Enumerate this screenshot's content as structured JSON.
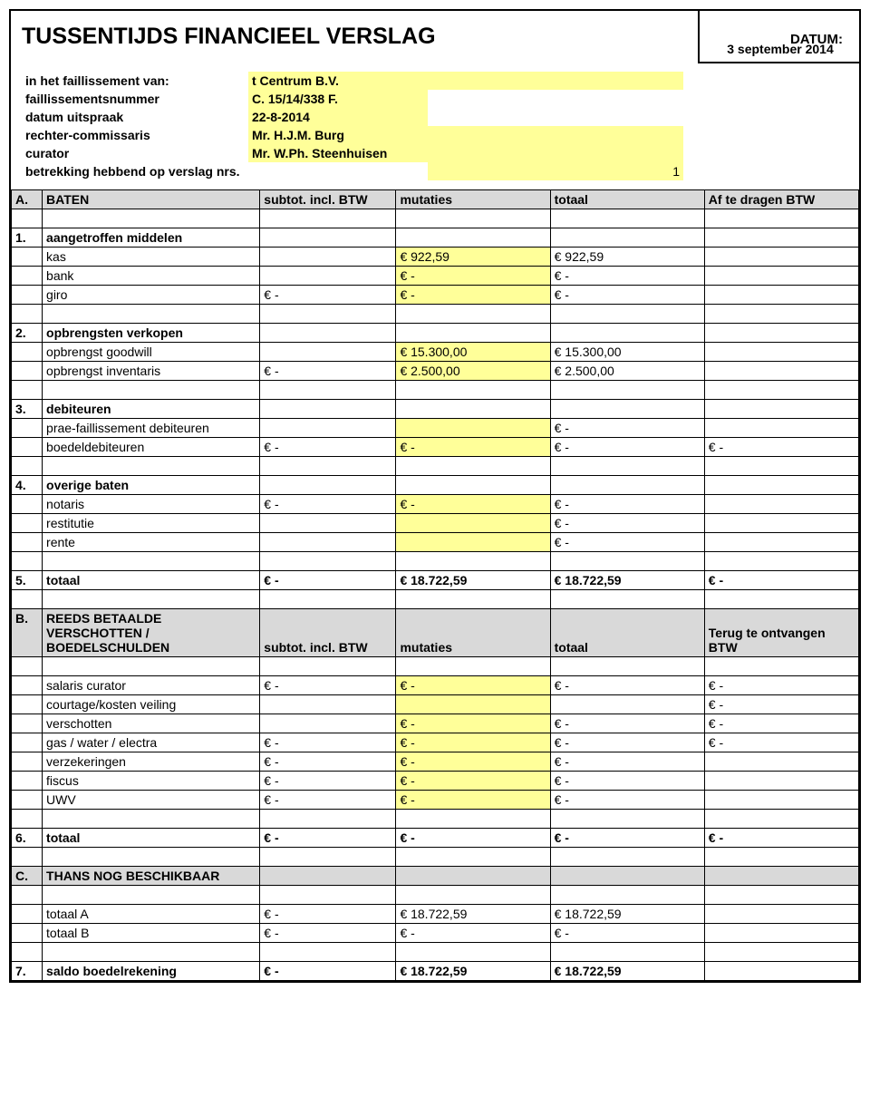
{
  "title": "TUSSENTIJDS FINANCIEEL VERSLAG",
  "datum_label": "DATUM:",
  "datum_value": "3 september 2014",
  "meta": {
    "r1_label": "in het faillissement van:",
    "r1_value": "t Centrum B.V.",
    "r2_label": "faillissementsnummer",
    "r2_value": "C. 15/14/338 F.",
    "r3_label": "datum uitspraak",
    "r3_value": "22-8-2014",
    "r4_label": "rechter-commissaris",
    "r4_value": "Mr. H.J.M. Burg",
    "r5_label": "curator",
    "r5_value": "Mr. W.Ph. Steenhuisen",
    "r6_label": "betrekking hebbend op verslag nrs.",
    "r6_value": "1"
  },
  "secA": {
    "idx": "A.",
    "title": "BATEN",
    "h1": "subtot. incl. BTW",
    "h2": "mutaties",
    "h3": "totaal",
    "h4": "Af te dragen BTW"
  },
  "s1": {
    "idx": "1.",
    "title": "aangetroffen middelen",
    "kas": "kas",
    "kas_m": "€             922,59",
    "kas_t": "€             922,59",
    "bank": "bank",
    "bank_m": "€                     -",
    "bank_t": "€                     -",
    "giro": "giro",
    "giro_s": "€                     -",
    "giro_m": "€                     -",
    "giro_t": "€                     -"
  },
  "s2": {
    "idx": "2.",
    "title": "opbrengsten verkopen",
    "gw": "opbrengst goodwill",
    "gw_m": "€        15.300,00",
    "gw_t": "€        15.300,00",
    "inv": "opbrengst inventaris",
    "inv_s": "€                     -",
    "inv_m": "€          2.500,00",
    "inv_t": "€          2.500,00"
  },
  "s3": {
    "idx": "3.",
    "title": "debiteuren",
    "pf": "prae-faillissement debiteuren",
    "pf_t": "€                     -",
    "bd": "boedeldebiteuren",
    "bd_s": "€                     -",
    "bd_m": "€                     -",
    "bd_t": "€                     -",
    "bd_b": "€                     -"
  },
  "s4": {
    "idx": "4.",
    "title": "overige baten",
    "not": "notaris",
    "not_s": "€                     -",
    "not_m": "€                     -",
    "not_t": "€                     -",
    "res": "restitutie",
    "res_t": "€                     -",
    "ren": "rente",
    "ren_t": "€                     -"
  },
  "s5": {
    "idx": "5.",
    "title": "totaal",
    "s": "€                     -",
    "m": "€        18.722,59",
    "t": "€        18.722,59",
    "b": "€                     -"
  },
  "secB": {
    "idx": "B.",
    "title": "REEDS BETAALDE VERSCHOTTEN / BOEDELSCHULDEN",
    "h1": "subtot. incl. BTW",
    "h2": "mutaties",
    "h3": "totaal",
    "h4": "Terug te ontvangen BTW"
  },
  "sb": {
    "sc": "salaris curator",
    "sc_s": "€                     -",
    "sc_m": "€                     -",
    "sc_t": "€                     -",
    "sc_b": "€                     -",
    "ck": "courtage/kosten veiling",
    "ck_b": "€                     -",
    "vs": "verschotten",
    "vs_m": "€                     -",
    "vs_t": "€                     -",
    "vs_b": "€                     -",
    "gw": "gas / water / electra",
    "gw_s": "€                     -",
    "gw_m": "€                     -",
    "gw_t": "€                     -",
    "gw_b": "€                     -",
    "vz": "verzekeringen",
    "vz_s": "€                     -",
    "vz_m": "€                     -",
    "vz_t": "€                     -",
    "fi": "fiscus",
    "fi_s": "€                     -",
    "fi_m": "€                     -",
    "fi_t": "€                     -",
    "uw": "UWV",
    "uw_s": "€                     -",
    "uw_m": "€                     -",
    "uw_t": "€                     -"
  },
  "s6": {
    "idx": "6.",
    "title": "totaal",
    "s": "€                     -",
    "m": "€                     -",
    "t": "€                     -",
    "b": "€                     -"
  },
  "secC": {
    "idx": "C.",
    "title": "THANS NOG BESCHIKBAAR"
  },
  "sc": {
    "ta": "totaal A",
    "ta_s": "€                     -",
    "ta_m": "€        18.722,59",
    "ta_t": "€        18.722,59",
    "tb": "totaal B",
    "tb_s": "€                     -",
    "tb_m": "€                     -",
    "tb_t": "€                     -"
  },
  "s7": {
    "idx": "7.",
    "title": "saldo boedelrekening",
    "s": "€                     -",
    "m": "€        18.722,59",
    "t": "€        18.722,59"
  }
}
